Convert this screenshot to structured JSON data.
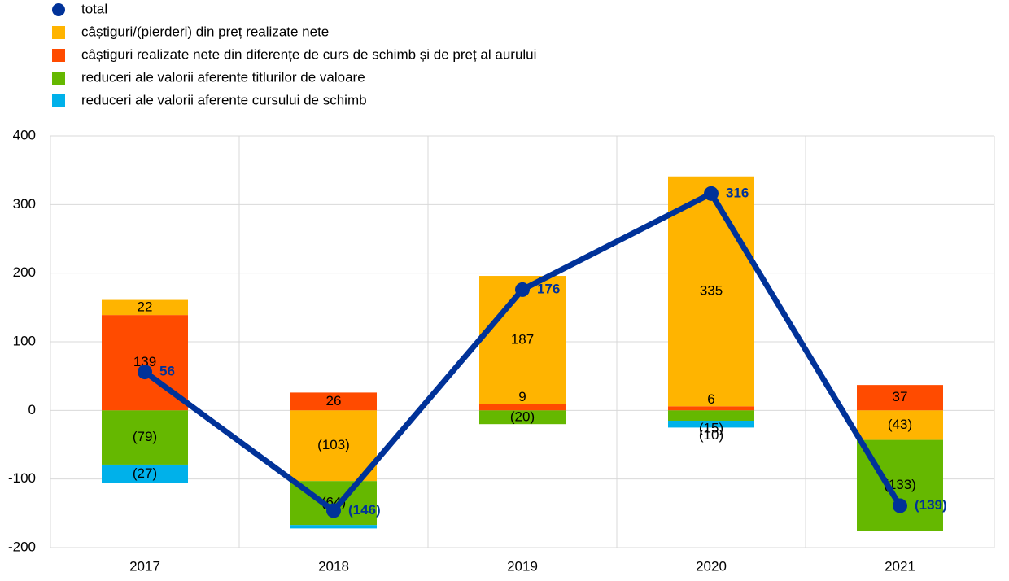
{
  "chart_data": {
    "type": "bar",
    "categories": [
      "2017",
      "2018",
      "2019",
      "2020",
      "2021"
    ],
    "series": [
      {
        "name": "câștiguri/(pierderi) din preț realizate nete",
        "color": "#ffb400",
        "values": [
          22,
          -103,
          187,
          335,
          -43
        ],
        "value_labels": [
          "22",
          "(103)",
          "187",
          "335",
          "(43)"
        ]
      },
      {
        "name": "câștiguri realizate nete din diferențe de curs de schimb și de preț al aurului",
        "color": "#ff4b00",
        "values": [
          139,
          26,
          9,
          6,
          37
        ],
        "value_labels": [
          "139",
          "26",
          "9",
          "6",
          "37"
        ]
      },
      {
        "name": "reduceri ale valorii aferente titlurilor de valoare",
        "color": "#65b800",
        "values": [
          -79,
          -64,
          -20,
          -15,
          -133
        ],
        "value_labels": [
          "(79)",
          "(64)",
          "(20)",
          "(15)",
          "(133)"
        ]
      },
      {
        "name": "reduceri ale valorii aferente cursului de schimb",
        "color": "#00b1ea",
        "values": [
          -27,
          -5,
          0,
          -10,
          0
        ],
        "value_labels": [
          "(27)",
          null,
          null,
          "(10)",
          null
        ]
      }
    ],
    "total": {
      "name": "total",
      "color": "#003299",
      "values": [
        56,
        -146,
        176,
        316,
        -139
      ],
      "value_labels": [
        "56",
        "(146)",
        "176",
        "316",
        "(139)"
      ]
    },
    "ylim": [
      -200,
      400
    ],
    "yticks": [
      -200,
      -100,
      0,
      100,
      200,
      300,
      400
    ],
    "grid": true
  }
}
